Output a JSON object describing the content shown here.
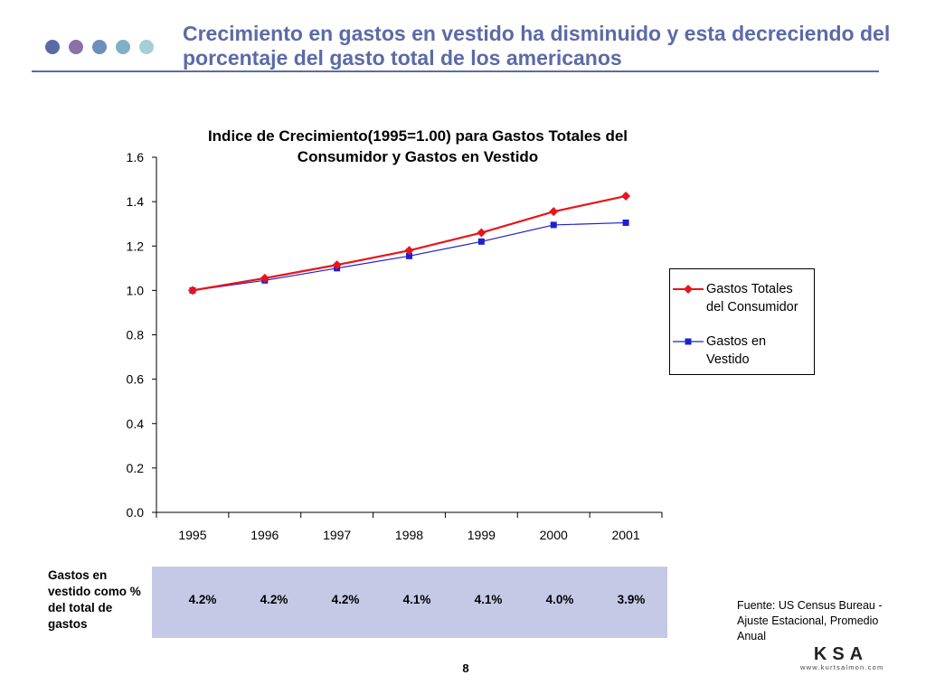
{
  "slide": {
    "title": "Crecimiento en gastos en vestido ha disminuido y esta decreciendo del porcentaje del gasto total de los americanos",
    "dot_colors": [
      "#5a6aa6",
      "#8a72a8",
      "#6c8fbe",
      "#7fb0c8",
      "#a5cfd6"
    ],
    "accent_color": "#5b6aa8",
    "page_number": "8",
    "source": "Fuente:  US Census Bureau - Ajuste Estacional, Promedio Anual",
    "logo": {
      "text": "KSA",
      "url_text": "www.kurtsalmon.com"
    }
  },
  "chart_data": {
    "type": "line",
    "title": "Indice de Crecimiento(1995=1.00) para Gastos Totales del Consumidor y Gastos en Vestido",
    "categories": [
      "1995",
      "1996",
      "1997",
      "1998",
      "1999",
      "2000",
      "2001"
    ],
    "ylim": [
      0,
      1.6
    ],
    "yticks": [
      "0.0",
      "0.2",
      "0.4",
      "0.6",
      "0.8",
      "1.0",
      "1.2",
      "1.4",
      "1.6"
    ],
    "grid": false,
    "legend_position": "right",
    "series": [
      {
        "name": "Gastos Totales del Consumidor",
        "values": [
          1.0,
          1.055,
          1.115,
          1.18,
          1.26,
          1.355,
          1.425
        ],
        "color": "#e8141b",
        "marker": "diamond"
      },
      {
        "name": "Gastos en Vestido",
        "values": [
          1.0,
          1.045,
          1.1,
          1.155,
          1.22,
          1.295,
          1.305
        ],
        "color": "#1f1fd0",
        "marker": "square"
      }
    ]
  },
  "table": {
    "row_label": "Gastos en vestido como % del total de gastos",
    "values": [
      "4.2%",
      "4.2%",
      "4.2%",
      "4.1%",
      "4.1%",
      "4.0%",
      "3.9%"
    ],
    "band_color": "#c5c9e6"
  }
}
